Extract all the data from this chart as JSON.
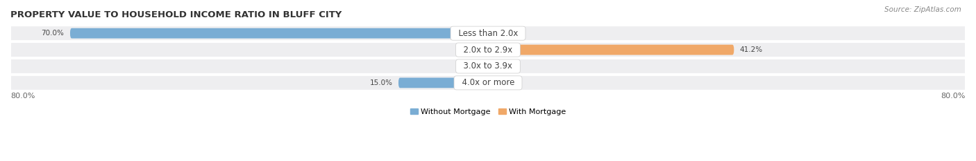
{
  "title": "PROPERTY VALUE TO HOUSEHOLD INCOME RATIO IN BLUFF CITY",
  "source": "Source: ZipAtlas.com",
  "categories": [
    "Less than 2.0x",
    "2.0x to 2.9x",
    "3.0x to 3.9x",
    "4.0x or more"
  ],
  "without_mortgage": [
    70.0,
    0.0,
    0.0,
    15.0
  ],
  "with_mortgage": [
    0.0,
    41.2,
    0.0,
    0.0
  ],
  "color_without": "#7aadd4",
  "color_with": "#f0a868",
  "xlim": [
    -80.0,
    80.0
  ],
  "x_left_label": "80.0%",
  "x_right_label": "80.0%",
  "bar_height": 0.62,
  "row_bg_color": "#eeeef0",
  "row_bg_alpha": 1.0,
  "title_fontsize": 9.5,
  "source_fontsize": 7.5,
  "label_fontsize": 8,
  "tick_fontsize": 8,
  "cat_fontsize": 8.5,
  "value_fontsize": 7.5
}
